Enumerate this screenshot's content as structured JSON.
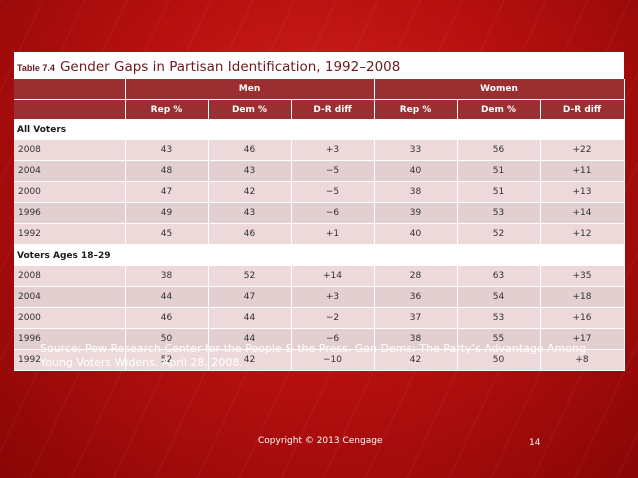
{
  "table": {
    "number": "Table 7.4",
    "title": "Gender Gaps in Partisan Identification, 1992–2008",
    "groups": [
      "Men",
      "Women"
    ],
    "columns": [
      "Rep %",
      "Dem %",
      "D-R diff",
      "Rep %",
      "Dem %",
      "D-R diff"
    ],
    "sections": [
      {
        "label": "All Voters",
        "rows": [
          [
            "2008",
            "43",
            "46",
            "+3",
            "33",
            "56",
            "+22"
          ],
          [
            "2004",
            "48",
            "43",
            "−5",
            "40",
            "51",
            "+11"
          ],
          [
            "2000",
            "47",
            "42",
            "−5",
            "38",
            "51",
            "+13"
          ],
          [
            "1996",
            "49",
            "43",
            "−6",
            "39",
            "53",
            "+14"
          ],
          [
            "1992",
            "45",
            "46",
            "+1",
            "40",
            "52",
            "+12"
          ]
        ]
      },
      {
        "label": "Voters Ages 18–29",
        "rows": [
          [
            "2008",
            "38",
            "52",
            "+14",
            "28",
            "63",
            "+35"
          ],
          [
            "2004",
            "44",
            "47",
            "+3",
            "36",
            "54",
            "+18"
          ],
          [
            "2000",
            "46",
            "44",
            "−2",
            "37",
            "53",
            "+16"
          ],
          [
            "1996",
            "50",
            "44",
            "−6",
            "38",
            "55",
            "+17"
          ],
          [
            "1992",
            "52",
            "42",
            "−10",
            "42",
            "50",
            "+8"
          ]
        ]
      }
    ]
  },
  "source": "Source: Pew Research Center for the People & the Press, Gen Dems: The Party’s Advantage Among Young Voters Widens, April 28, 2008.",
  "copyright": "Copyright © 2013 Cengage",
  "page_number": "14"
}
